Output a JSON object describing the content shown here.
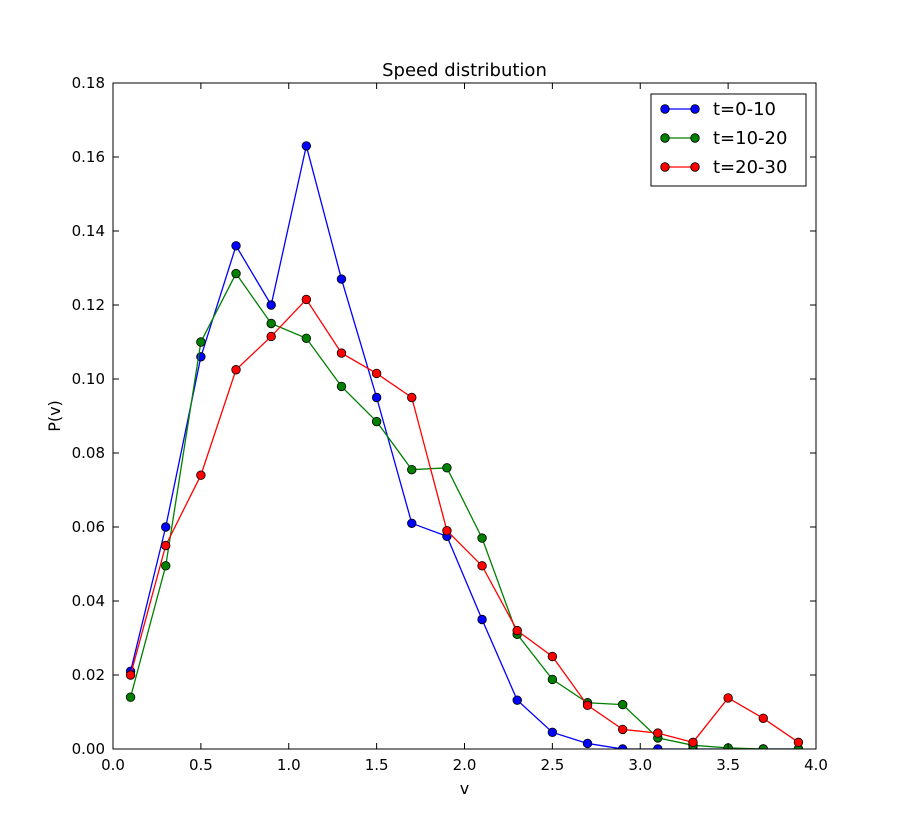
{
  "chart_data": {
    "type": "line",
    "title": "Speed distribution",
    "xlabel": "v",
    "ylabel": "P(v)",
    "xlim": [
      0.0,
      4.0
    ],
    "ylim": [
      0.0,
      0.18
    ],
    "xticks": [
      "0.0",
      "0.5",
      "1.0",
      "1.5",
      "2.0",
      "2.5",
      "3.0",
      "3.5",
      "4.0"
    ],
    "yticks": [
      "0.00",
      "0.02",
      "0.04",
      "0.06",
      "0.08",
      "0.10",
      "0.12",
      "0.14",
      "0.16",
      "0.18"
    ],
    "grid": false,
    "legend_position": "top-right",
    "x": [
      0.1,
      0.3,
      0.5,
      0.7,
      0.9,
      1.1,
      1.3,
      1.5,
      1.7,
      1.9,
      2.1,
      2.3,
      2.5,
      2.7,
      2.9,
      3.1,
      3.3,
      3.5,
      3.7,
      3.9
    ],
    "series": [
      {
        "name": "t=0-10",
        "color": "#0000ff",
        "values": [
          0.021,
          0.06,
          0.106,
          0.136,
          0.12,
          0.163,
          0.127,
          0.095,
          0.061,
          0.0575,
          0.035,
          0.0132,
          0.0045,
          0.0015,
          0.0,
          0.0,
          0.0,
          0.0,
          0.0,
          0.0
        ]
      },
      {
        "name": "t=10-20",
        "color": "#008000",
        "values": [
          0.014,
          0.0495,
          0.11,
          0.1285,
          0.115,
          0.111,
          0.098,
          0.0885,
          0.0755,
          0.076,
          0.057,
          0.031,
          0.0188,
          0.0125,
          0.012,
          0.003,
          0.001,
          0.0003,
          0.0,
          0.0
        ]
      },
      {
        "name": "t=20-30",
        "color": "#ff0000",
        "values": [
          0.02,
          0.055,
          0.074,
          0.1025,
          0.1115,
          0.1215,
          0.107,
          0.1015,
          0.095,
          0.059,
          0.0495,
          0.032,
          0.025,
          0.0118,
          0.0053,
          0.0043,
          0.0018,
          0.0138,
          0.0083,
          0.0018
        ]
      }
    ]
  }
}
